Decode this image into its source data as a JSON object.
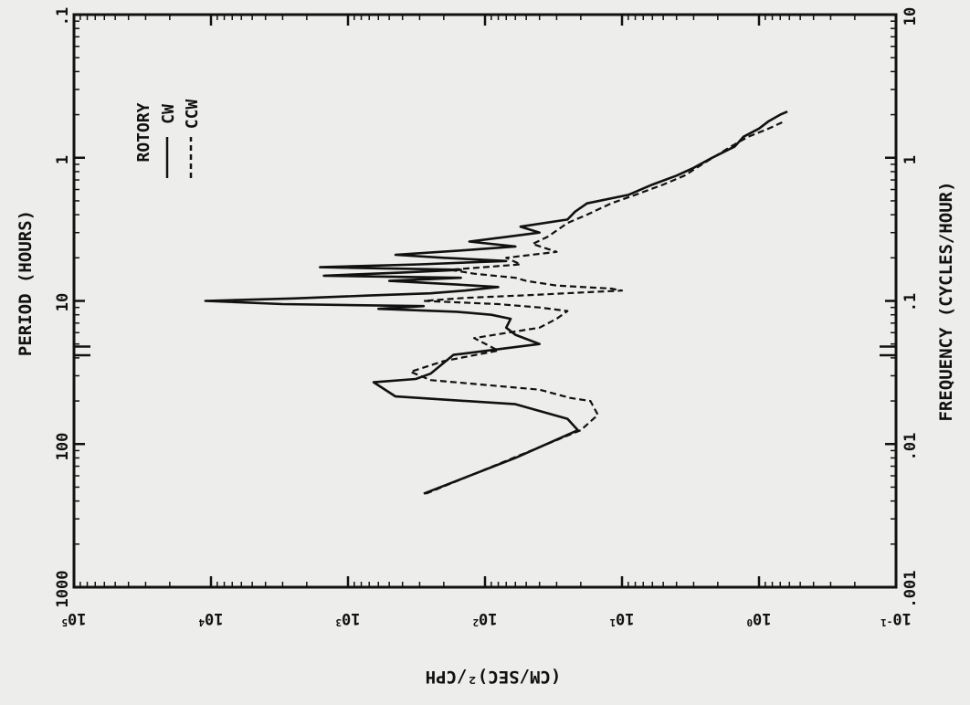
{
  "chart_data": {
    "type": "line",
    "title": "",
    "axes": {
      "period": {
        "label": "PERIOD (HOURS)",
        "scale": "log",
        "ticks": [
          "1000",
          "100",
          "10",
          "1",
          ".1"
        ]
      },
      "frequency": {
        "label": "FREQUENCY (CYCLES/HOUR)",
        "scale": "log",
        "range": [
          0.001,
          10
        ],
        "ticks": [
          ".001",
          ".01",
          ".1",
          "1",
          "10"
        ]
      },
      "spectral_density": {
        "label": "(CM/SEC)²/CPH",
        "scale": "log",
        "range": [
          0.1,
          100000
        ],
        "ticks": [
          {
            "mantissa": "10",
            "exp": "5"
          },
          {
            "mantissa": "10",
            "exp": "4"
          },
          {
            "mantissa": "10",
            "exp": "3"
          },
          {
            "mantissa": "10",
            "exp": "2"
          },
          {
            "mantissa": "10",
            "exp": "1"
          },
          {
            "mantissa": "10",
            "exp": "0"
          },
          {
            "mantissa": "10",
            "exp": "-1"
          }
        ]
      }
    },
    "legend": {
      "title": "ROTORY",
      "placement": "top-left",
      "entries": [
        "CW",
        "CCW"
      ]
    },
    "series": [
      {
        "name": "CW",
        "style": "solid",
        "points": [
          [
            0.0045,
            280
          ],
          [
            0.008,
            60
          ],
          [
            0.0125,
            21
          ],
          [
            0.015,
            25
          ],
          [
            0.019,
            60
          ],
          [
            0.0215,
            450
          ],
          [
            0.027,
            650
          ],
          [
            0.0285,
            320
          ],
          [
            0.031,
            250
          ],
          [
            0.042,
            170
          ],
          [
            0.05,
            40
          ],
          [
            0.058,
            60
          ],
          [
            0.065,
            70
          ],
          [
            0.075,
            65
          ],
          [
            0.08,
            90
          ],
          [
            0.084,
            160
          ],
          [
            0.088,
            600
          ],
          [
            0.092,
            280
          ],
          [
            0.095,
            3000
          ],
          [
            0.1,
            11000
          ],
          [
            0.104,
            2500
          ],
          [
            0.109,
            700
          ],
          [
            0.113,
            250
          ],
          [
            0.118,
            140
          ],
          [
            0.125,
            80
          ],
          [
            0.13,
            160
          ],
          [
            0.138,
            500
          ],
          [
            0.145,
            150
          ],
          [
            0.15,
            1500
          ],
          [
            0.158,
            400
          ],
          [
            0.165,
            150
          ],
          [
            0.172,
            1600
          ],
          [
            0.18,
            300
          ],
          [
            0.19,
            70
          ],
          [
            0.2,
            200
          ],
          [
            0.21,
            450
          ],
          [
            0.225,
            150
          ],
          [
            0.24,
            60
          ],
          [
            0.26,
            130
          ],
          [
            0.28,
            70
          ],
          [
            0.3,
            40
          ],
          [
            0.33,
            55
          ],
          [
            0.37,
            25
          ],
          [
            0.42,
            22
          ],
          [
            0.48,
            18
          ],
          [
            0.55,
            9
          ],
          [
            0.65,
            6
          ],
          [
            0.75,
            4
          ],
          [
            0.85,
            3
          ],
          [
            1,
            2.2
          ],
          [
            1.2,
            1.5
          ],
          [
            1.4,
            1.3
          ],
          [
            1.6,
            1
          ],
          [
            1.8,
            0.85
          ],
          [
            2,
            0.7
          ],
          [
            2.1,
            0.62
          ]
        ]
      },
      {
        "name": "CCW",
        "style": "dashed",
        "points": [
          [
            0.0045,
            270
          ],
          [
            0.008,
            62
          ],
          [
            0.0125,
            20
          ],
          [
            0.016,
            15
          ],
          [
            0.02,
            17
          ],
          [
            0.021,
            24
          ],
          [
            0.024,
            40
          ],
          [
            0.028,
            250
          ],
          [
            0.032,
            350
          ],
          [
            0.038,
            200
          ],
          [
            0.045,
            80
          ],
          [
            0.055,
            120
          ],
          [
            0.065,
            40
          ],
          [
            0.075,
            30
          ],
          [
            0.085,
            25
          ],
          [
            0.09,
            40
          ],
          [
            0.095,
            80
          ],
          [
            0.1,
            280
          ],
          [
            0.105,
            140
          ],
          [
            0.11,
            45
          ],
          [
            0.115,
            18
          ],
          [
            0.118,
            10
          ],
          [
            0.122,
            12
          ],
          [
            0.128,
            30
          ],
          [
            0.138,
            50
          ],
          [
            0.145,
            60
          ],
          [
            0.155,
            120
          ],
          [
            0.165,
            180
          ],
          [
            0.18,
            55
          ],
          [
            0.2,
            70
          ],
          [
            0.22,
            30
          ],
          [
            0.25,
            45
          ],
          [
            0.28,
            35
          ],
          [
            0.31,
            30
          ],
          [
            0.35,
            25
          ],
          [
            0.4,
            18
          ],
          [
            0.48,
            12
          ],
          [
            0.55,
            8
          ],
          [
            0.65,
            5
          ],
          [
            0.75,
            3.5
          ],
          [
            0.9,
            2.6
          ],
          [
            1.05,
            2
          ],
          [
            1.2,
            1.6
          ],
          [
            1.4,
            1.2
          ],
          [
            1.6,
            0.85
          ],
          [
            1.8,
            0.65
          ]
        ]
      }
    ]
  }
}
